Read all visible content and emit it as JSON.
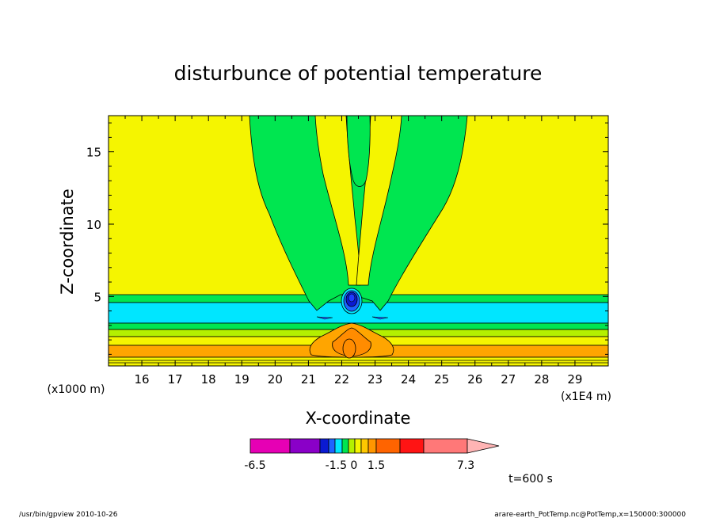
{
  "chart_data": {
    "type": "contour",
    "title": "disturbunce of potential temperature",
    "xlabel": "X-coordinate",
    "ylabel": "Z-coordinate",
    "x_unit_note": "(x1E4 m)",
    "y_unit_note": "(x1000 m)",
    "xlim": [
      15,
      30
    ],
    "ylim": [
      0.2,
      17.5
    ],
    "x_ticks": [
      "16",
      "17",
      "18",
      "19",
      "20",
      "21",
      "22",
      "23",
      "24",
      "25",
      "26",
      "27",
      "28",
      "29"
    ],
    "y_ticks": [
      "5",
      "10",
      "15"
    ],
    "colorbar": {
      "levels": [
        -6.5,
        -1.5,
        0,
        1.5,
        7.3
      ],
      "tick_labels": [
        "-6.5",
        "-1.5 0",
        "1.5",
        "7.3"
      ],
      "colors": [
        "#e600b4",
        "#8a00c8",
        "#0a1ad2",
        "#1e64ff",
        "#00e6ff",
        "#00e650",
        "#b4f000",
        "#f5f500",
        "#ffc800",
        "#ff9600",
        "#ff6400",
        "#ff1414",
        "#ff7878",
        "#ffb4b4"
      ]
    },
    "annotation": "t=600 s",
    "footer_left": "/usr/bin/gpview  2010-10-26",
    "footer_right": "arare-earth_PotTemp.nc@PotTemp,x=150000:300000",
    "fill_colors": {
      "background": "#f5f500",
      "green": "#00e650",
      "cyan": "#00e6ff",
      "lightgreen": "#b4f000",
      "orange": "#ffa500",
      "darkorange": "#ff8c00",
      "blue": "#1e64ff",
      "darkblue": "#0a1ad2"
    }
  }
}
